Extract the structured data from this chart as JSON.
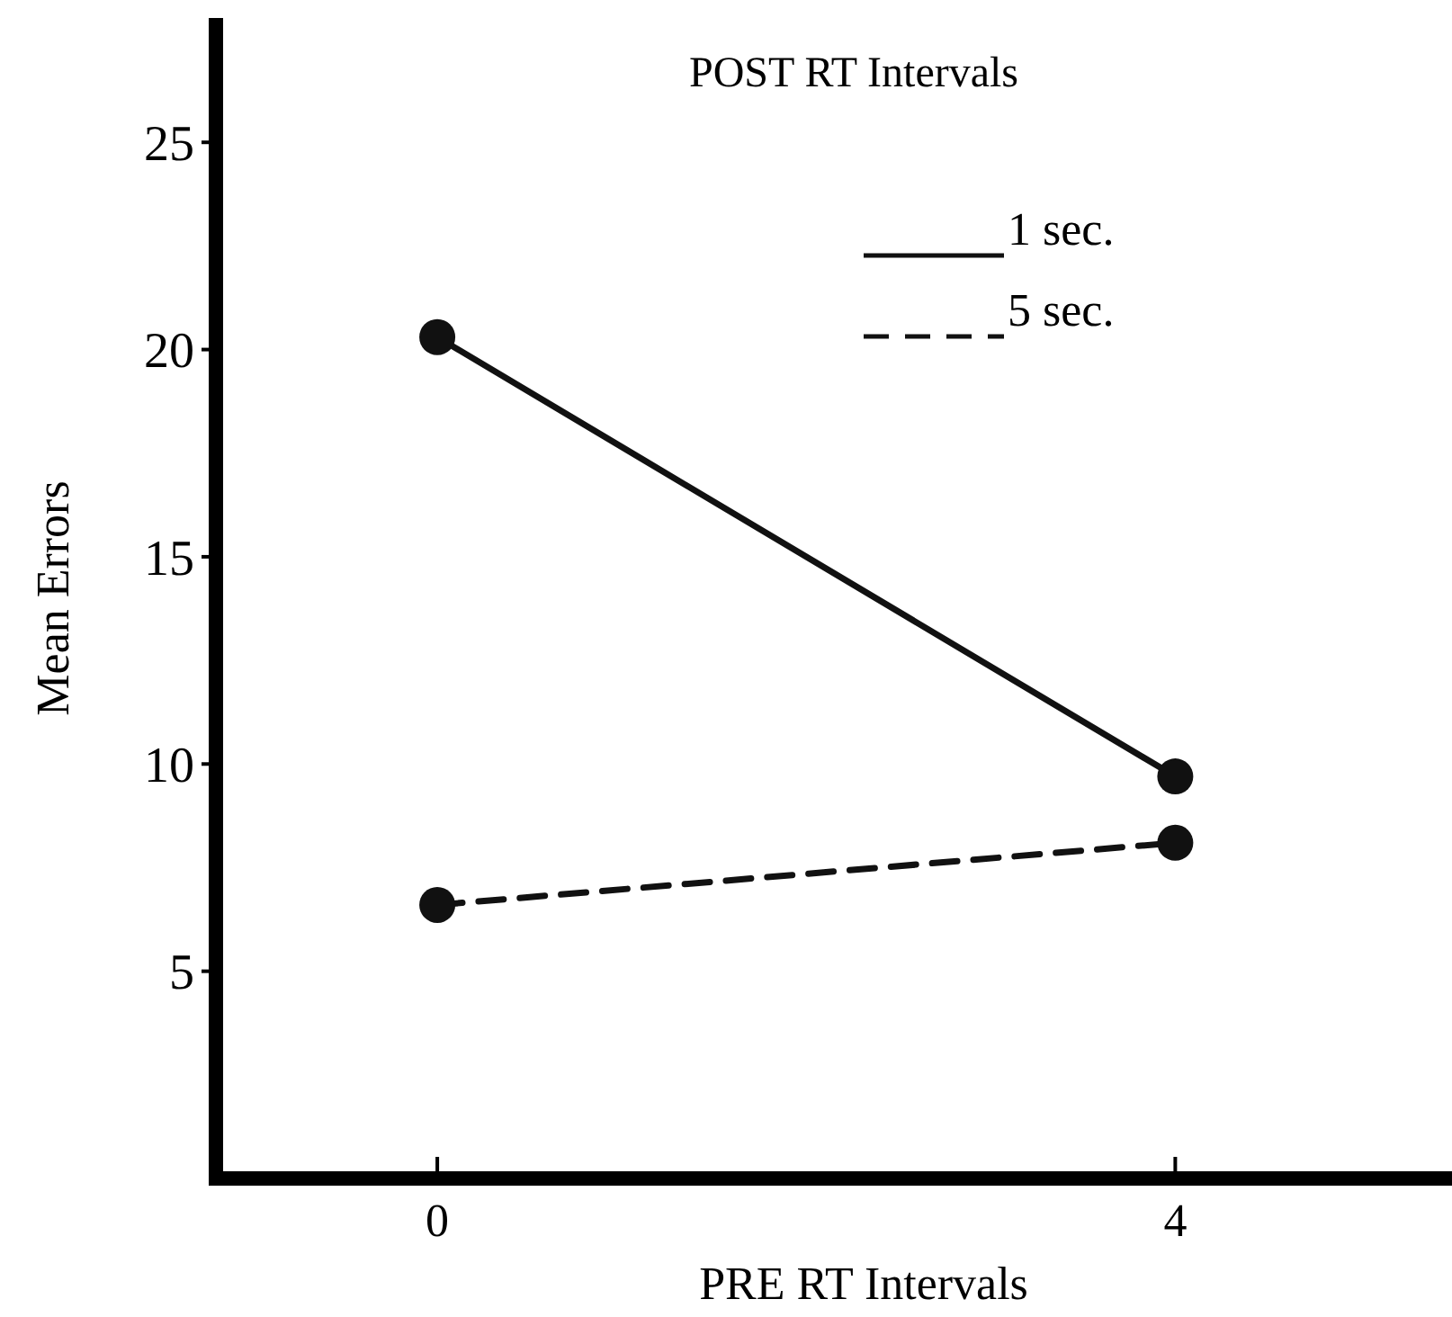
{
  "chart_data": {
    "type": "line",
    "xlabel": "PRE RT Intervals",
    "ylabel": "Mean Errors",
    "legend_title": "POST RT Intervals",
    "xlim": [
      -1.2,
      5.5
    ],
    "xticks": [
      0,
      4
    ],
    "ylim": [
      0,
      28
    ],
    "yticks": [
      5,
      10,
      15,
      20,
      25
    ],
    "legend": "top right",
    "x": [
      0,
      4
    ],
    "grid": false,
    "marker": "circle",
    "series": [
      {
        "name": "1 sec.",
        "color": "#111111",
        "values": [
          20.3,
          9.7
        ],
        "line_style": "solid"
      },
      {
        "name": "5 sec.",
        "color": "#111111",
        "values": [
          6.6,
          8.1
        ],
        "line_style": "dashed"
      }
    ]
  }
}
